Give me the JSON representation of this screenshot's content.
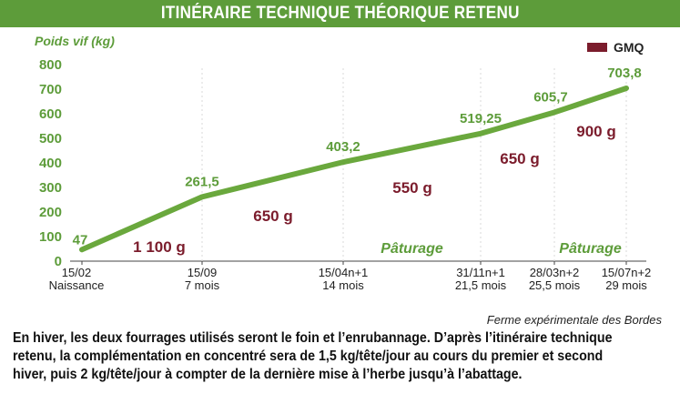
{
  "title": "ITINÉRAIRE TECHNIQUE THÉORIQUE RETENU",
  "source": "Ferme expérimentale des Bordes",
  "note": "En hiver, les deux fourrages utilisés seront le foin et l’enrubannage. D’après l’itinéraire technique retenu, la complémentation en concentré sera de 1,5 kg/tête/jour au cours du premier et second hiver, puis 2 kg/tête/jour à compter de la dernière mise à l’herbe jusqu’à l’abattage.",
  "colors": {
    "accent": "#5d9c3a",
    "line": "#6aa83d",
    "gmq": "#7b1c2c",
    "grid": "#d9d9d9"
  },
  "chart_data": {
    "type": "line",
    "ylabel": "Poids vif (kg)",
    "ylim": [
      0,
      800
    ],
    "yticks": [
      "0",
      "100",
      "200",
      "300",
      "400",
      "500",
      "600",
      "700",
      "800"
    ],
    "x_ticks": [
      {
        "date": "15/02",
        "age": "Naissance"
      },
      {
        "date": "15/09",
        "age": "7 mois"
      },
      {
        "date": "15/04n+1",
        "age": "14 mois"
      },
      {
        "date": "31/11n+1",
        "age": "21,5 mois"
      },
      {
        "date": "28/03n+2",
        "age": "25,5 mois"
      },
      {
        "date": "15/07n+2",
        "age": "29 mois"
      }
    ],
    "series": [
      {
        "name": "Poids vif",
        "values": [
          47,
          261.5,
          403.2,
          519.25,
          605.7,
          703.8
        ],
        "labels": [
          "47",
          "261,5",
          "403,2",
          "519,25",
          "605,7",
          "703,8"
        ]
      }
    ],
    "gmq": {
      "legend": "GMQ",
      "values": [
        "1 100 g",
        "650 g",
        "550 g",
        "650 g",
        "900 g"
      ]
    },
    "pasture_label": "Pâturage",
    "pasture_periods": [
      2,
      4
    ],
    "grid": true,
    "legend_position": "top-right"
  }
}
